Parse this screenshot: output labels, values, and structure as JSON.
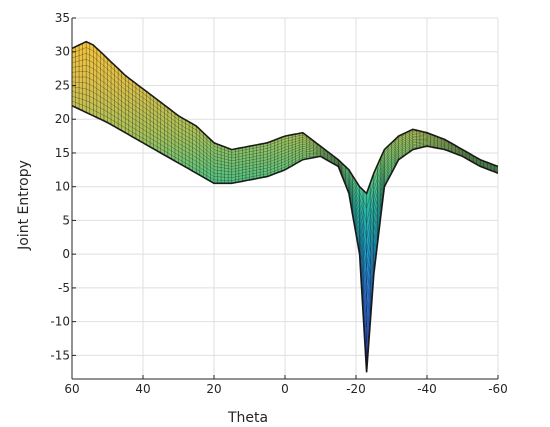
{
  "chart_data": {
    "type": "surface",
    "title": "",
    "xlabel": "Theta",
    "ylabel": "Joint Entropy",
    "xlim": [
      60,
      -60
    ],
    "ylim": [
      -18.5,
      35
    ],
    "x_reversed": true,
    "grid": true,
    "colormap": "parula",
    "xticks": [
      60,
      40,
      20,
      0,
      -20,
      -40,
      -60
    ],
    "xtick_labels": [
      "60",
      "40",
      "20",
      "0",
      "-20",
      "-40",
      "-60"
    ],
    "yticks": [
      35,
      30,
      25,
      20,
      15,
      10,
      5,
      0,
      -5,
      -10,
      -15
    ],
    "ytick_labels": [
      "35",
      "30",
      "25",
      "20",
      "15",
      "10",
      "5",
      "0",
      "-5",
      "-10",
      "-15"
    ],
    "series": [
      {
        "role": "upper envelope",
        "x": [
          60,
          56,
          54,
          50,
          45,
          40,
          35,
          30,
          25,
          20,
          15,
          10,
          5,
          0,
          -5,
          -10,
          -15,
          -18,
          -21,
          -23,
          -25,
          -28,
          -32,
          -36,
          -40,
          -45,
          -50,
          -55,
          -60
        ],
        "values": [
          30.5,
          31.5,
          31,
          29,
          26.5,
          24.5,
          22.5,
          20.5,
          19,
          16.5,
          15.5,
          16,
          16.5,
          17.5,
          18,
          16,
          14,
          12.5,
          10,
          9,
          12,
          15.5,
          17.5,
          18.5,
          18,
          17,
          15.5,
          14,
          13
        ]
      },
      {
        "role": "lower envelope",
        "x": [
          60,
          56,
          54,
          50,
          45,
          40,
          35,
          30,
          25,
          20,
          15,
          10,
          5,
          0,
          -5,
          -10,
          -15,
          -18,
          -21,
          -23,
          -25,
          -28,
          -32,
          -36,
          -40,
          -45,
          -50,
          -55,
          -60
        ],
        "values": [
          22,
          21,
          20.5,
          19.5,
          18,
          16.5,
          15,
          13.5,
          12,
          10.5,
          10.5,
          11,
          11.5,
          12.5,
          14,
          14.5,
          13,
          9,
          0,
          -17.5,
          -3,
          10,
          14,
          15.5,
          16,
          15.5,
          14.5,
          13,
          12
        ]
      }
    ]
  }
}
